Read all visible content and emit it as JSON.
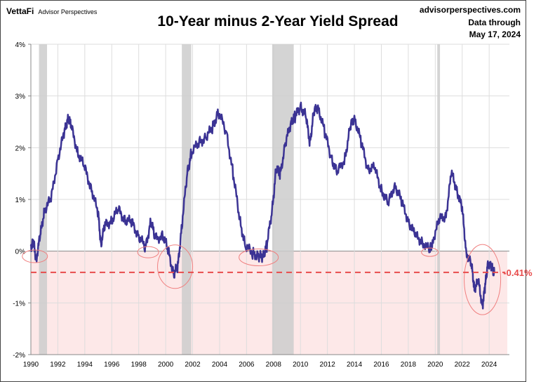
{
  "header": {
    "brand": "VettaFi",
    "brand_sub": "Advisor Perspectives",
    "source": "advisorperspectives.com",
    "data_through_label": "Data through",
    "data_through_date": "May 17, 2024"
  },
  "chart_data": {
    "type": "line",
    "title": "10-Year minus 2-Year Yield Spread",
    "xlim": [
      1990,
      2025.5
    ],
    "ylim": [
      -2,
      4
    ],
    "y_ticks": [
      "4%",
      "3%",
      "2%",
      "1%",
      "0%",
      "-1%",
      "-2%"
    ],
    "y_tick_values": [
      4,
      3,
      2,
      1,
      0,
      -1,
      -2
    ],
    "x_ticks": [
      "1990",
      "1992",
      "1994",
      "1996",
      "1998",
      "2000",
      "2002",
      "2004",
      "2006",
      "2008",
      "2010",
      "2012",
      "2014",
      "2016",
      "2018",
      "2020",
      "2022",
      "2024"
    ],
    "grid": true,
    "colors": {
      "line": "#3b3394",
      "negative_shade": "#fde8e8",
      "recession": "#cccccc",
      "current": "#e84c4c"
    },
    "recessions": [
      [
        1990.6,
        1991.2
      ],
      [
        2001.2,
        2001.9
      ],
      [
        2007.9,
        2009.5
      ],
      [
        2020.15,
        2020.35
      ]
    ],
    "inversion_highlights": [
      1990.3,
      1998.7,
      2000.7,
      2006.9,
      2019.6,
      2023.5
    ],
    "current_value": -0.41,
    "current_label": "-0.41%",
    "series": [
      {
        "x": [
          1990.0,
          1990.2,
          1990.4,
          1990.7,
          1991.0,
          1991.5,
          1992.0,
          1992.5,
          1992.75,
          1993.0,
          1993.5,
          1994.0,
          1994.5,
          1995.0,
          1995.2,
          1995.5,
          1996.0,
          1996.5,
          1997.0,
          1997.5,
          1998.0,
          1998.5,
          1998.9,
          1999.2,
          1999.8,
          2000.2,
          2000.6,
          2000.9,
          2001.2,
          2001.6,
          2001.9,
          2002.5,
          2003.0,
          2003.5,
          2003.9,
          2004.5,
          2005.0,
          2005.5,
          2005.9,
          2006.5,
          2006.9,
          2007.2,
          2007.5,
          2007.9,
          2008.2,
          2008.5,
          2008.9,
          2009.3,
          2009.6,
          2010.0,
          2010.4,
          2010.7,
          2011.0,
          2011.3,
          2011.8,
          2012.3,
          2012.7,
          2013.3,
          2013.7,
          2014.0,
          2014.5,
          2015.0,
          2015.5,
          2016.0,
          2016.5,
          2017.0,
          2017.5,
          2018.0,
          2018.5,
          2019.0,
          2019.6,
          2019.8,
          2020.3,
          2020.8,
          2021.2,
          2021.6,
          2022.0,
          2022.3,
          2022.7,
          2022.9,
          2023.2,
          2023.5,
          2023.7,
          2023.9,
          2024.2,
          2024.38
        ],
        "values": [
          0.1,
          0.15,
          -0.15,
          0.3,
          0.8,
          1.0,
          1.8,
          2.3,
          2.6,
          2.4,
          1.9,
          1.6,
          1.2,
          0.7,
          0.15,
          0.5,
          0.6,
          0.8,
          0.6,
          0.55,
          0.3,
          0.05,
          0.6,
          0.25,
          0.3,
          0.0,
          -0.45,
          -0.3,
          0.5,
          1.5,
          1.9,
          2.1,
          2.2,
          2.4,
          2.7,
          2.3,
          1.5,
          0.6,
          0.1,
          -0.05,
          -0.1,
          -0.1,
          0.1,
          0.8,
          1.6,
          1.5,
          2.1,
          2.5,
          2.6,
          2.8,
          2.6,
          2.1,
          2.7,
          2.8,
          2.3,
          1.8,
          1.5,
          1.8,
          2.4,
          2.6,
          2.1,
          1.6,
          1.6,
          1.2,
          0.9,
          1.3,
          0.95,
          0.6,
          0.3,
          0.2,
          0.0,
          0.2,
          0.6,
          0.7,
          1.5,
          1.2,
          0.8,
          0.0,
          -0.3,
          -0.7,
          -0.6,
          -1.05,
          -0.7,
          -0.2,
          -0.35,
          -0.41
        ]
      }
    ]
  }
}
